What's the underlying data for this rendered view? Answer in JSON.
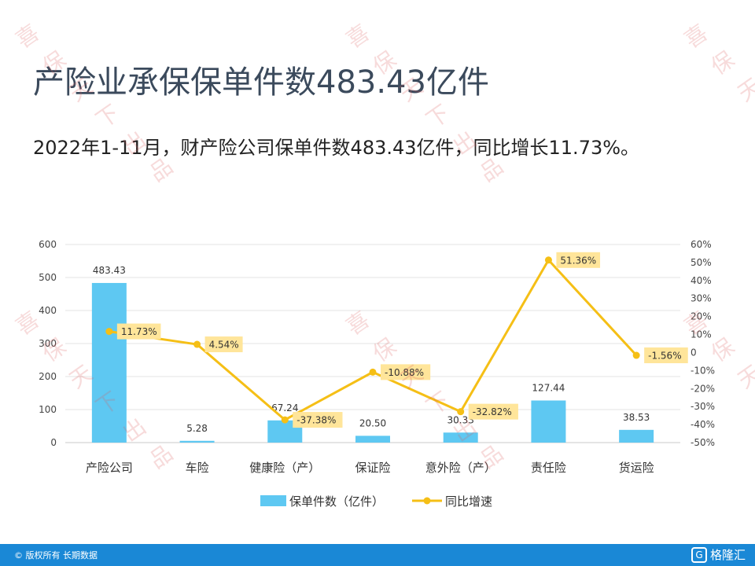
{
  "title": "产险业承保保单件数483.43亿件",
  "subtitle": "2022年1-11月，财产险公司保单件数483.43亿件，同比增长11.73%。",
  "footer": {
    "copyright": "© 版权所有 长期数据",
    "brand": "格隆汇",
    "brand_mark": "G"
  },
  "watermark_chars": [
    "喜",
    "保",
    "天",
    "下",
    "出",
    "品"
  ],
  "colors": {
    "bar": "#5ec8f2",
    "line": "#f5bf16",
    "label_bg": "#ffe59a",
    "title": "#3b4a5c",
    "footer": "#1a88d6"
  },
  "chart_data": {
    "type": "bar",
    "title": "",
    "categories": [
      "产险公司",
      "车险",
      "健康险（产）",
      "保证险",
      "意外险（产）",
      "责任险",
      "货运险"
    ],
    "series": [
      {
        "name": "保单件数（亿件）",
        "type": "bar",
        "axis": "left",
        "values": [
          483.43,
          5.28,
          67.24,
          20.5,
          30.33,
          127.44,
          38.53
        ],
        "labels": [
          "483.43",
          "5.28",
          "67.24",
          "20.50",
          "30.33",
          "127.44",
          "38.53"
        ]
      },
      {
        "name": "同比增速",
        "type": "line",
        "axis": "right",
        "values": [
          11.73,
          4.54,
          -37.38,
          -10.88,
          -32.82,
          51.36,
          -1.56
        ],
        "labels": [
          "11.73%",
          "4.54%",
          "-37.38%",
          "-10.88%",
          "-32.82%",
          "51.36%",
          "-1.56%"
        ]
      }
    ],
    "ylim_left": [
      0,
      600
    ],
    "yticks_left": [
      "0",
      "100",
      "200",
      "300",
      "400",
      "500",
      "600"
    ],
    "ylim_right": [
      -50,
      60
    ],
    "yticks_right": [
      "-50%",
      "-40%",
      "-30%",
      "-20%",
      "-10%",
      "0",
      "10%",
      "20%",
      "30%",
      "40%",
      "50%",
      "60%"
    ],
    "grid": true,
    "legend": "bottom"
  }
}
